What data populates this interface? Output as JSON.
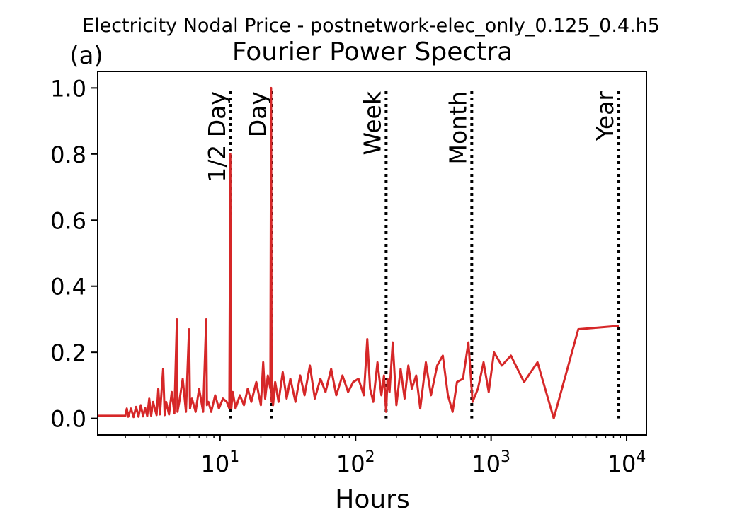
{
  "suptitle": "Electricity Nodal Price - postnetwork-elec_only_0.125_0.4.h5",
  "panel_label": "(a)",
  "chart_data": {
    "type": "line",
    "title": "Fourier Power Spectra",
    "xlabel": "Hours",
    "ylabel": "",
    "xscale": "log",
    "xlim": [
      1.25,
      14000
    ],
    "ylim": [
      -0.05,
      1.05
    ],
    "grid": false,
    "x_tick_labels": [
      {
        "value": 10,
        "base": "10",
        "exp": "1"
      },
      {
        "value": 100,
        "base": "10",
        "exp": "2"
      },
      {
        "value": 1000,
        "base": "10",
        "exp": "3"
      },
      {
        "value": 10000,
        "base": "10",
        "exp": "4"
      }
    ],
    "y_ticks": [
      0.0,
      0.2,
      0.4,
      0.6,
      0.8,
      1.0
    ],
    "y_tick_labels": [
      "0.0",
      "0.2",
      "0.4",
      "0.6",
      "0.8",
      "1.0"
    ],
    "reference_lines": [
      {
        "label": "1/2 Day",
        "x": 12
      },
      {
        "label": "Day",
        "x": 24
      },
      {
        "label": "Week",
        "x": 168
      },
      {
        "label": "Month",
        "x": 720
      },
      {
        "label": "Year",
        "x": 8760
      }
    ],
    "series": [
      {
        "color": "#d62728",
        "x": [
          1.25,
          2.0,
          2.05,
          2.1,
          2.2,
          2.3,
          2.4,
          2.5,
          2.6,
          2.7,
          2.8,
          2.9,
          3.0,
          3.1,
          3.2,
          3.4,
          3.5,
          3.6,
          3.8,
          3.9,
          4.0,
          4.2,
          4.4,
          4.6,
          4.8,
          4.85,
          5.0,
          5.3,
          5.6,
          5.9,
          6.0,
          6.2,
          6.6,
          7.0,
          7.5,
          7.9,
          8.0,
          8.2,
          8.6,
          9.2,
          9.8,
          10.5,
          11.2,
          11.7,
          11.9,
          12.0,
          12.1,
          12.4,
          13.0,
          14.0,
          15.0,
          16.0,
          17.0,
          18.5,
          20.0,
          20.8,
          21.5,
          22.5,
          23.5,
          23.8,
          24.0,
          24.2,
          24.6,
          25.5,
          27.0,
          29.0,
          31.0,
          33.0,
          36.0,
          39.0,
          42.0,
          46.0,
          50.0,
          55.0,
          60.0,
          66.0,
          72.0,
          80.0,
          88.0,
          96.0,
          105.0,
          115.0,
          122.0,
          128.0,
          135.0,
          145.0,
          155.0,
          162.0,
          168.0,
          172.0,
          178.0,
          188.0,
          200.0,
          215.0,
          230.0,
          245.0,
          260.0,
          280.0,
          300.0,
          330.0,
          360.0,
          400.0,
          440.0,
          480.0,
          520.0,
          560.0,
          620.0,
          680.0,
          730.0,
          800.0,
          880.0,
          960.0,
          1050.0,
          1200.0,
          1400.0,
          1750.0,
          2200.0,
          2900.0,
          4400.0,
          8760.0
        ],
        "values": [
          0.008,
          0.008,
          0.03,
          0.005,
          0.03,
          0.004,
          0.035,
          0.005,
          0.04,
          0.006,
          0.032,
          0.007,
          0.06,
          0.008,
          0.05,
          0.01,
          0.09,
          0.012,
          0.15,
          0.01,
          0.05,
          0.012,
          0.08,
          0.015,
          0.3,
          0.02,
          0.05,
          0.12,
          0.02,
          0.27,
          0.03,
          0.06,
          0.02,
          0.09,
          0.02,
          0.3,
          0.04,
          0.05,
          0.02,
          0.07,
          0.03,
          0.06,
          0.05,
          0.03,
          0.8,
          0.05,
          0.03,
          0.08,
          0.03,
          0.07,
          0.04,
          0.09,
          0.05,
          0.11,
          0.04,
          0.17,
          0.06,
          0.13,
          0.09,
          1.0,
          0.05,
          0.12,
          0.04,
          0.11,
          0.05,
          0.14,
          0.06,
          0.12,
          0.05,
          0.13,
          0.07,
          0.16,
          0.06,
          0.12,
          0.08,
          0.15,
          0.07,
          0.13,
          0.08,
          0.11,
          0.12,
          0.07,
          0.24,
          0.09,
          0.05,
          0.17,
          0.07,
          0.13,
          0.02,
          0.12,
          0.08,
          0.23,
          0.04,
          0.15,
          0.06,
          0.16,
          0.09,
          0.13,
          0.03,
          0.17,
          0.07,
          0.16,
          0.19,
          0.07,
          0.02,
          0.11,
          0.12,
          0.23,
          0.05,
          0.09,
          0.17,
          0.08,
          0.2,
          0.16,
          0.19,
          0.11,
          0.17,
          0.0,
          0.27,
          0.28
        ]
      }
    ]
  }
}
